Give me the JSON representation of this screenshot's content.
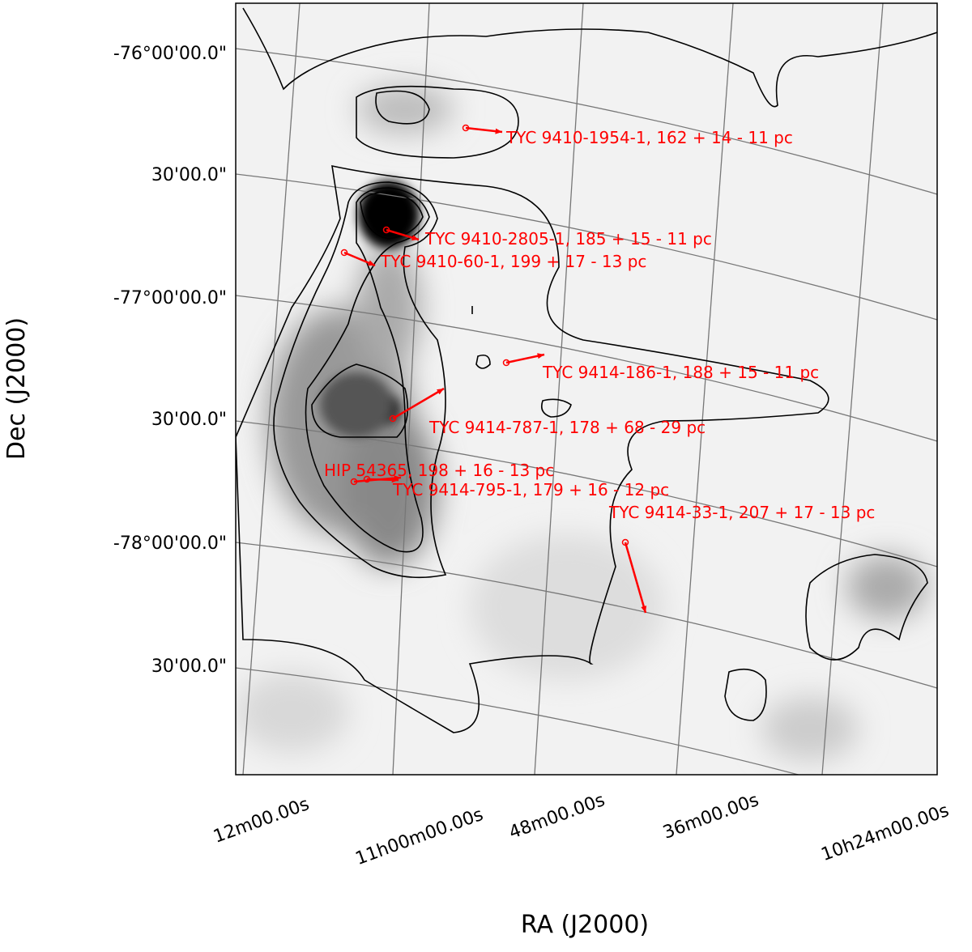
{
  "figure": {
    "x_label": "RA (J2000)",
    "y_label": "Dec (J2000)",
    "x_tick_labels": [
      "12m00.00s",
      "11h00m00.00s",
      "48m00.00s",
      "36m00.00s",
      "10h24m00.00s"
    ],
    "y_tick_labels": [
      "-76°00'00.0\"",
      "30'00.0\"",
      "-77°00'00.0\"",
      "30'00.0\"",
      "-78°00'00.0\"",
      "30'00.0\""
    ],
    "stars": [
      {
        "label": "TYC 9410-1954-1, 162 + 14 - 11 pc"
      },
      {
        "label": "TYC 9410-2805-1, 185 + 15 - 11 pc"
      },
      {
        "label": "TYC 9410-60-1, 199 + 17 - 13 pc"
      },
      {
        "label": "TYC 9414-186-1, 188 + 15 - 11 pc"
      },
      {
        "label": "TYC 9414-787-1, 178 + 68 - 29 pc"
      },
      {
        "label": "HIP 54365, 198 + 16 - 13 pc"
      },
      {
        "label": "TYC 9414-795-1, 179 + 16 - 12 pc"
      },
      {
        "label": "TYC 9414-33-1, 207 + 17 - 13 pc"
      }
    ]
  }
}
